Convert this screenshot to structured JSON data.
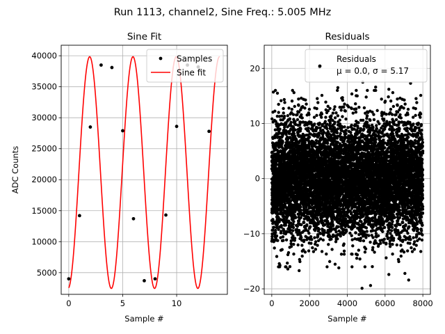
{
  "figure": {
    "suptitle": "Run 1113, channel2, Sine Freq.: 5.005 MHz"
  },
  "chart_data": [
    {
      "type": "line",
      "title": "Sine Fit",
      "xlabel": "Sample #",
      "ylabel": "ADC Counts",
      "xlim": [
        -0.7,
        14.7
      ],
      "ylim": [
        1500,
        41700
      ],
      "xticks": [
        0,
        5,
        10
      ],
      "yticks": [
        5000,
        10000,
        15000,
        20000,
        25000,
        30000,
        35000,
        40000
      ],
      "grid": true,
      "legend": "top-right",
      "samples": {
        "name": "Samples",
        "color": "#000000",
        "x": [
          0,
          1,
          2,
          3,
          4,
          5,
          6,
          7,
          8,
          9,
          10,
          11,
          12,
          13
        ],
        "y": [
          4000,
          14200,
          28500,
          38500,
          38100,
          27900,
          13700,
          3700,
          4000,
          14300,
          28600,
          38500,
          38200,
          27800
        ]
      },
      "fit": {
        "name": "Sine fit",
        "color": "#ff0000",
        "model": "offset + amplitude*sin(2*pi*frequency*x + phase)",
        "offset": 21150,
        "amplitude": 18700,
        "frequency": 0.2494,
        "phase": -1.471,
        "x_range": [
          0,
          14
        ]
      }
    },
    {
      "type": "scatter",
      "title": "Residuals",
      "xlabel": "Sample #",
      "xlim": [
        -400,
        8400
      ],
      "ylim": [
        -21,
        24.2
      ],
      "xticks": [
        0,
        2000,
        4000,
        6000,
        8000
      ],
      "yticks": [
        -20,
        -10,
        0,
        10,
        20
      ],
      "grid": true,
      "legend": "top-right",
      "series": {
        "name": "Residuals",
        "legend_stats": "μ = 0.0, σ = 5.17",
        "color": "#000000",
        "count": 8000,
        "mean": 0.0,
        "std": 5.17
      },
      "outliers": [
        {
          "x": 2530,
          "y": 20.2
        },
        {
          "x": 4780,
          "y": -19.9
        },
        {
          "x": 4820,
          "y": 17.5
        },
        {
          "x": 5230,
          "y": -19.4
        },
        {
          "x": 3500,
          "y": 16.5
        },
        {
          "x": 7350,
          "y": 17.3
        },
        {
          "x": 6200,
          "y": 16.2
        },
        {
          "x": 1100,
          "y": 16.0
        },
        {
          "x": 300,
          "y": 15.5
        },
        {
          "x": 7250,
          "y": -18.4
        },
        {
          "x": 7050,
          "y": -17.2
        },
        {
          "x": 6200,
          "y": -17.4
        },
        {
          "x": 850,
          "y": -16.4
        },
        {
          "x": 3550,
          "y": -16.2
        },
        {
          "x": 5500,
          "y": 16.6
        },
        {
          "x": 4250,
          "y": -16.0
        },
        {
          "x": 140,
          "y": -12.6
        },
        {
          "x": 1450,
          "y": -16.7
        },
        {
          "x": 3700,
          "y": 14.6
        },
        {
          "x": 5000,
          "y": 14.8
        }
      ]
    }
  ]
}
